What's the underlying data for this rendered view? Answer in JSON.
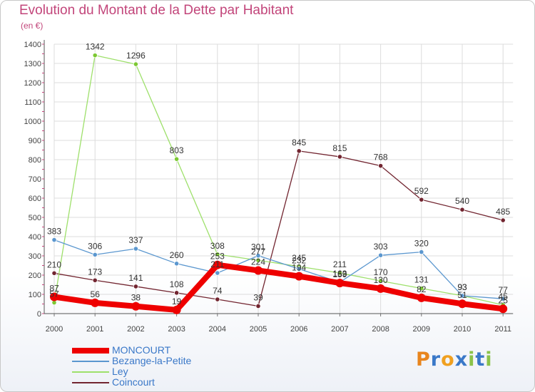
{
  "chart_data": {
    "type": "line",
    "title": "Evolution du Montant de la Dette par Habitant",
    "subtitle": "(en €)",
    "xlabel": "",
    "ylabel": "",
    "ylim": [
      0,
      1400
    ],
    "yticks": [
      0,
      100,
      200,
      300,
      400,
      500,
      600,
      700,
      800,
      900,
      1000,
      1100,
      1200,
      1300,
      1400
    ],
    "x": [
      "2000",
      "2001",
      "2002",
      "2003",
      "2004",
      "2005",
      "2006",
      "2007",
      "2008",
      "2009",
      "2010",
      "2011"
    ],
    "grid": true,
    "legend_position": "bottom-left",
    "series": [
      {
        "name": "Coincourt",
        "color": "#722530",
        "values": [
          210,
          173,
          141,
          108,
          74,
          39,
          845,
          815,
          768,
          592,
          540,
          485
        ],
        "labels": [
          "210",
          "173",
          "141",
          "108",
          "74",
          "39",
          "845",
          "815",
          "768",
          "592",
          "540",
          "485"
        ]
      },
      {
        "name": "Ley",
        "color": "#9ee06b",
        "marker_color": "#7cc832",
        "values": [
          57,
          1342,
          1296,
          803,
          308,
          277,
          245,
          211,
          170,
          131,
          93,
          45
        ],
        "labels": [
          "57",
          "1342",
          "1296",
          "803",
          "308",
          "277",
          "245",
          "211",
          "170",
          "131",
          "93",
          "45"
        ]
      },
      {
        "name": "Bezange-la-Petite",
        "color": "#5b97cf",
        "values": [
          383,
          306,
          337,
          260,
          211,
          301,
          232,
          163,
          303,
          320,
          93,
          77
        ],
        "labels": [
          "383",
          "306",
          "337",
          "260",
          "211",
          "301",
          "232",
          "163",
          "303",
          "320",
          "93",
          "77"
        ]
      },
      {
        "name": "MONCOURT",
        "color": "#ee0000",
        "values": [
          87,
          56,
          38,
          19,
          253,
          224,
          194,
          159,
          130,
          82,
          51,
          25
        ],
        "labels": [
          "87",
          "56",
          "38",
          "19",
          "253",
          "224",
          "194",
          "159",
          "130",
          "82",
          "51",
          "25"
        ]
      }
    ]
  },
  "legend": {
    "items": [
      {
        "name": "MONCOURT",
        "color": "#ee0000"
      },
      {
        "name": "Bezange-la-Petite",
        "color": "#5b97cf"
      },
      {
        "name": "Ley",
        "color": "#9ee06b"
      },
      {
        "name": "Coincourt",
        "color": "#722530"
      }
    ]
  },
  "logo": {
    "letters": [
      "P",
      "r",
      "o",
      "x",
      "i",
      "t",
      "i"
    ],
    "colors": [
      "#e8851e",
      "#3a78c8",
      "#f0a020",
      "#3a78c8",
      "#8bc34a",
      "#3a78c8",
      "#8bc34a"
    ]
  }
}
